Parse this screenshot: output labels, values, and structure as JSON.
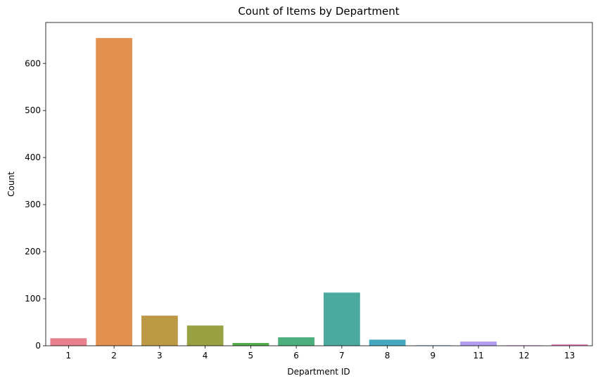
{
  "chart_data": {
    "type": "bar",
    "title": "Count of Items by Department",
    "xlabel": "Department ID",
    "ylabel": "Count",
    "categories": [
      "1",
      "2",
      "3",
      "4",
      "5",
      "6",
      "7",
      "8",
      "9",
      "11",
      "12",
      "13"
    ],
    "values": [
      16,
      654,
      64,
      43,
      6,
      18,
      113,
      13,
      1,
      9,
      1,
      3
    ],
    "colors": [
      "#e8808e",
      "#e39150",
      "#bd9845",
      "#98a242",
      "#54ac4a",
      "#4daf7d",
      "#4ca99f",
      "#44a9be",
      "#6eb0e8",
      "#b49cef",
      "#de85ea",
      "#ea81b6"
    ],
    "ylim": [
      0,
      687
    ],
    "yticks": [
      0,
      100,
      200,
      300,
      400,
      500,
      600
    ],
    "grid": false,
    "legend": "none"
  }
}
